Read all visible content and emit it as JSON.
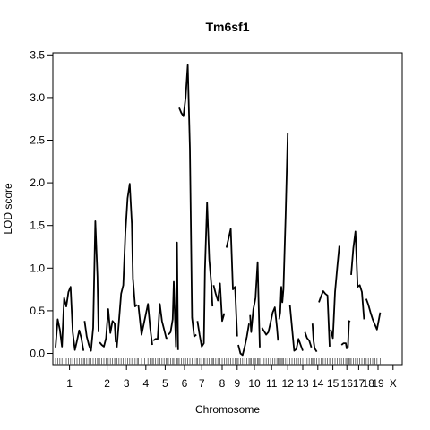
{
  "chart_data": {
    "type": "line",
    "title": "Tm6sf1",
    "xlabel": "Chromosome",
    "ylabel": "LOD score",
    "ylim": [
      -0.1,
      3.5
    ],
    "yticks": [
      "0.0",
      "0.5",
      "1.0",
      "1.5",
      "2.0",
      "2.5",
      "3.0",
      "3.5"
    ],
    "grid": false,
    "chromosomes": [
      {
        "name": "1",
        "start": 0,
        "end": 26,
        "positions": [
          0,
          2,
          4,
          6,
          8,
          10,
          12,
          14,
          16,
          18,
          20,
          22,
          24,
          26
        ],
        "values": [
          0.07,
          0.4,
          0.28,
          0.08,
          0.65,
          0.55,
          0.72,
          0.78,
          0.25,
          0.04,
          0.15,
          0.27,
          0.18,
          0.03
        ]
      },
      {
        "name": "",
        "start": 27,
        "end": 40,
        "positions": [
          27,
          29,
          31,
          33,
          35,
          37,
          39,
          40
        ],
        "values": [
          0.38,
          0.2,
          0.1,
          0.03,
          0.3,
          1.55,
          0.9,
          0.25
        ]
      },
      {
        "name": "2",
        "start": 41,
        "end": 56,
        "positions": [
          41,
          43,
          45,
          47,
          49,
          51,
          53,
          55,
          56
        ],
        "values": [
          0.13,
          0.1,
          0.08,
          0.18,
          0.52,
          0.24,
          0.38,
          0.35,
          0.13
        ]
      },
      {
        "name": "3",
        "start": 57,
        "end": 76,
        "positions": [
          57,
          59,
          61,
          63,
          65,
          67,
          69,
          71,
          72,
          74,
          76
        ],
        "values": [
          0.07,
          0.38,
          0.7,
          0.8,
          1.42,
          1.82,
          1.99,
          1.52,
          0.88,
          0.55,
          0.57
        ]
      },
      {
        "name": "4",
        "start": 77,
        "end": 90,
        "positions": [
          77,
          80,
          83,
          86,
          88,
          90
        ],
        "values": [
          0.57,
          0.22,
          0.4,
          0.58,
          0.3,
          0.1
        ]
      },
      {
        "name": "5",
        "start": 91,
        "end": 104,
        "positions": [
          91,
          93,
          95,
          97,
          99,
          101,
          103,
          104
        ],
        "values": [
          0.15,
          0.17,
          0.17,
          0.58,
          0.38,
          0.28,
          0.18,
          0.18
        ]
      },
      {
        "name": "6",
        "start": 105,
        "end": 114,
        "positions": [
          105,
          107,
          109,
          110,
          112,
          113,
          114
        ],
        "values": [
          0.22,
          0.25,
          0.4,
          0.84,
          0.08,
          1.3,
          0.04
        ]
      },
      {
        "name": "7",
        "start": 115,
        "end": 131,
        "positions": [
          115,
          117,
          119,
          121,
          123,
          125,
          127,
          129,
          131
        ],
        "values": [
          2.88,
          2.82,
          2.78,
          3.0,
          3.38,
          2.4,
          0.42,
          0.2,
          0.22
        ]
      },
      {
        "name": "8",
        "start": 132,
        "end": 146,
        "positions": [
          132,
          134,
          136,
          138,
          139,
          141,
          143,
          145,
          146
        ],
        "values": [
          0.38,
          0.22,
          0.08,
          0.12,
          0.98,
          1.77,
          1.1,
          0.8,
          0.55
        ]
      },
      {
        "name": "9",
        "start": 147,
        "end": 157,
        "positions": [
          147,
          149,
          151,
          153,
          155,
          157
        ],
        "values": [
          0.8,
          0.7,
          0.62,
          0.82,
          0.38,
          0.47
        ]
      },
      {
        "name": "",
        "start": 159,
        "end": 169,
        "positions": [
          159,
          161,
          163,
          165,
          167,
          169
        ],
        "values": [
          1.24,
          1.35,
          1.46,
          0.75,
          0.78,
          0.2
        ]
      },
      {
        "name": "10",
        "start": 170,
        "end": 180,
        "positions": [
          170,
          172,
          174,
          176,
          178,
          180
        ],
        "values": [
          0.1,
          0.0,
          -0.02,
          0.08,
          0.2,
          0.35
        ]
      },
      {
        "name": "11",
        "start": 181,
        "end": 190,
        "positions": [
          181,
          182,
          184,
          185,
          186,
          188,
          189,
          190
        ],
        "values": [
          0.45,
          0.25,
          0.52,
          0.58,
          0.65,
          1.07,
          0.55,
          0.07
        ]
      },
      {
        "name": "12",
        "start": 192,
        "end": 207,
        "positions": [
          192,
          194,
          196,
          198,
          200,
          202,
          204,
          206,
          207
        ],
        "values": [
          0.3,
          0.26,
          0.22,
          0.25,
          0.36,
          0.48,
          0.54,
          0.3,
          0.15
        ]
      },
      {
        "name": "13",
        "start": 208,
        "end": 216,
        "positions": [
          208,
          209,
          210,
          211,
          212,
          214,
          216
        ],
        "values": [
          0.4,
          0.48,
          0.78,
          0.6,
          0.75,
          1.6,
          2.58
        ]
      },
      {
        "name": "14",
        "start": 218,
        "end": 230,
        "positions": [
          218,
          220,
          222,
          224,
          226,
          228,
          230
        ],
        "values": [
          0.57,
          0.3,
          0.03,
          0.05,
          0.17,
          0.1,
          0.03
        ]
      },
      {
        "name": "15",
        "start": 232,
        "end": 238,
        "positions": [
          232,
          234,
          236,
          238
        ],
        "values": [
          0.25,
          0.18,
          0.15,
          0.07
        ]
      },
      {
        "name": "",
        "start": 239,
        "end": 243,
        "positions": [
          239,
          240,
          241,
          243
        ],
        "values": [
          0.35,
          0.15,
          0.06,
          0.02
        ]
      },
      {
        "name": "16",
        "start": 245,
        "end": 255,
        "positions": [
          245,
          247,
          249,
          251,
          253,
          255
        ],
        "values": [
          0.6,
          0.67,
          0.73,
          0.7,
          0.68,
          0.08
        ]
      },
      {
        "name": "17",
        "start": 256,
        "end": 264,
        "positions": [
          256,
          258,
          260,
          262,
          264
        ],
        "values": [
          0.28,
          0.18,
          0.72,
          1.0,
          1.26
        ]
      },
      {
        "name": "18",
        "start": 266,
        "end": 271,
        "positions": [
          266,
          268,
          270,
          271
        ],
        "values": [
          0.1,
          0.12,
          0.12,
          0.05
        ]
      },
      {
        "name": "",
        "start": 272,
        "end": 274,
        "positions": [
          272,
          273,
          274
        ],
        "values": [
          0.07,
          0.38,
          0.37
        ]
      },
      {
        "name": "19",
        "start": 275,
        "end": 287,
        "positions": [
          275,
          277,
          279,
          281,
          283,
          285,
          287
        ],
        "values": [
          0.92,
          1.23,
          1.43,
          0.78,
          0.8,
          0.72,
          0.4
        ]
      },
      {
        "name": "X",
        "start": 289,
        "end": 302,
        "positions": [
          289,
          291,
          293,
          295,
          297,
          299,
          302
        ],
        "values": [
          0.64,
          0.57,
          0.48,
          0.4,
          0.34,
          0.28,
          0.48
        ]
      }
    ],
    "chromosome_labels": [
      {
        "label": "1",
        "pos": 13
      },
      {
        "label": "2",
        "pos": 48
      },
      {
        "label": "3",
        "pos": 66
      },
      {
        "label": "4",
        "pos": 84
      },
      {
        "label": "5",
        "pos": 102
      },
      {
        "label": "6",
        "pos": 120
      },
      {
        "label": "7",
        "pos": 136
      },
      {
        "label": "8",
        "pos": 155
      },
      {
        "label": "9",
        "pos": 169
      },
      {
        "label": "10",
        "pos": 185
      },
      {
        "label": "11",
        "pos": 201
      },
      {
        "label": "12",
        "pos": 216
      },
      {
        "label": "13",
        "pos": 230
      },
      {
        "label": "14",
        "pos": 244
      },
      {
        "label": "15",
        "pos": 258
      },
      {
        "label": "16",
        "pos": 271
      },
      {
        "label": "17",
        "pos": 282
      },
      {
        "label": "18",
        "pos": 291
      },
      {
        "label": "19",
        "pos": 300
      },
      {
        "label": "X",
        "pos": 314
      }
    ],
    "xlim": [
      0,
      320
    ]
  }
}
